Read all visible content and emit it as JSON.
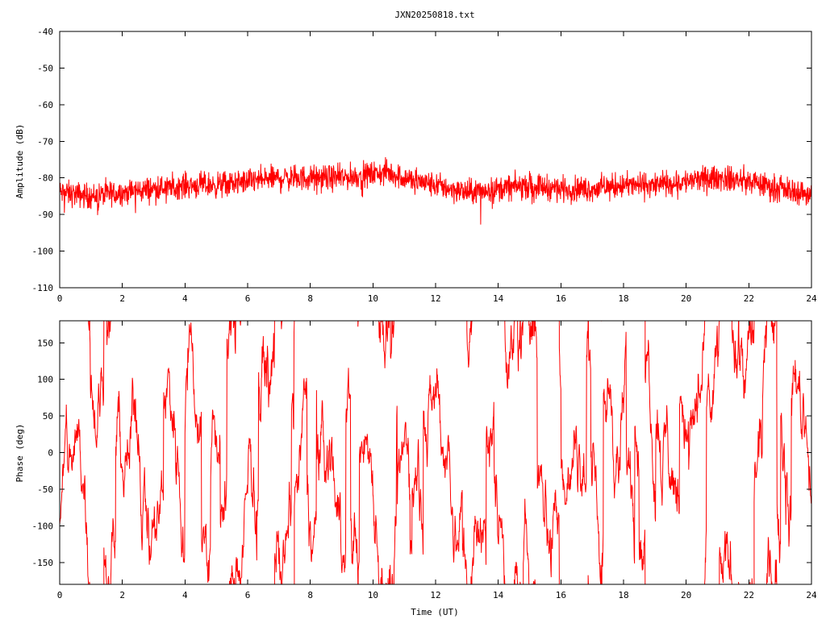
{
  "chart_data": [
    {
      "type": "line",
      "title": "JXN20250818.txt",
      "xlabel": "",
      "ylabel": "Amplitude (dB)",
      "xlim": [
        0,
        24
      ],
      "ylim": [
        -110,
        -40
      ],
      "grid": false,
      "x_ticks": [
        "0",
        "2",
        "4",
        "6",
        "8",
        "10",
        "12",
        "14",
        "16",
        "18",
        "20",
        "22",
        "24"
      ],
      "y_ticks": [
        "-40",
        "-50",
        "-60",
        "-70",
        "-80",
        "-90",
        "-100",
        "-110"
      ],
      "color": "#ff0000",
      "trend": {
        "x": [
          0,
          1,
          2,
          3,
          4,
          5,
          6,
          7,
          8,
          9,
          10,
          10.5,
          11,
          12,
          13,
          14,
          15,
          16,
          17,
          18,
          19,
          20,
          21,
          22,
          23,
          24
        ],
        "y": [
          -84,
          -85,
          -84,
          -83,
          -82,
          -82,
          -81,
          -80,
          -80,
          -80,
          -79,
          -78.5,
          -80,
          -82,
          -84,
          -83,
          -82,
          -83,
          -83,
          -82,
          -82,
          -81,
          -80,
          -81,
          -83,
          -84.5
        ]
      },
      "spread_db": 3.5
    },
    {
      "type": "line",
      "title": "",
      "xlabel": "Time (UT)",
      "ylabel": "Phase (deg)",
      "xlim": [
        0,
        24
      ],
      "ylim": [
        -180,
        180
      ],
      "grid": false,
      "x_ticks": [
        "0",
        "2",
        "4",
        "6",
        "8",
        "10",
        "12",
        "14",
        "16",
        "18",
        "20",
        "22",
        "24"
      ],
      "y_ticks": [
        "150",
        "100",
        "50",
        "0",
        "-50",
        "-100",
        "-150"
      ],
      "color": "#ff0000",
      "wrapping": true
    }
  ]
}
